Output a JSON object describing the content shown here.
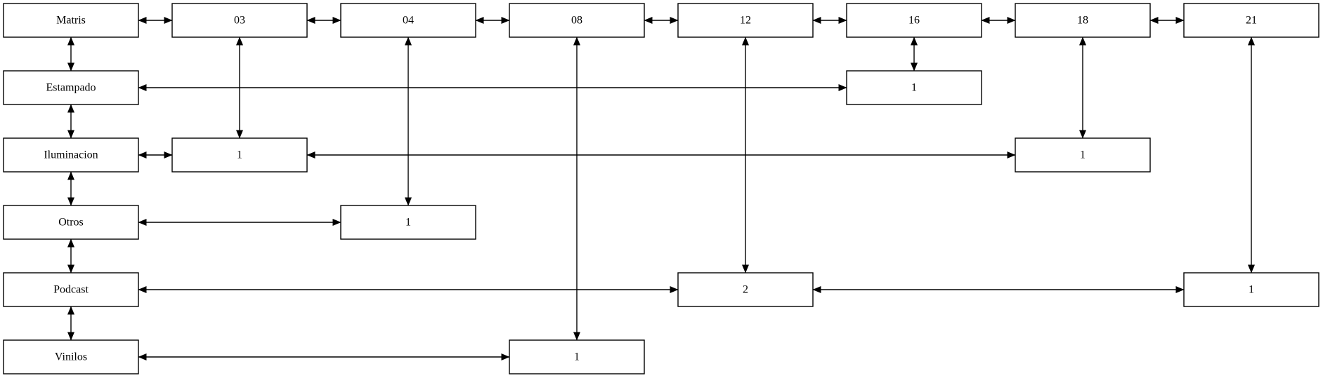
{
  "diagram": {
    "line_color": "#000000",
    "box_fill": "#ffffff",
    "header_row": {
      "root": "Matris",
      "columns": [
        "03",
        "04",
        "08",
        "12",
        "16",
        "18",
        "21"
      ]
    },
    "row_labels": [
      "Estampado",
      "Iluminacion",
      "Otros",
      "Podcast",
      "Vinilos"
    ],
    "cells": [
      {
        "row": "Estampado",
        "column": "16",
        "value": "1"
      },
      {
        "row": "Iluminacion",
        "column": "03",
        "value": "1"
      },
      {
        "row": "Iluminacion",
        "column": "18",
        "value": "1"
      },
      {
        "row": "Otros",
        "column": "04",
        "value": "1"
      },
      {
        "row": "Podcast",
        "column": "12",
        "value": "2"
      },
      {
        "row": "Podcast",
        "column": "21",
        "value": "1"
      },
      {
        "row": "Vinilos",
        "column": "08",
        "value": "1"
      }
    ],
    "edge_style": "bidirectional-arrow"
  }
}
